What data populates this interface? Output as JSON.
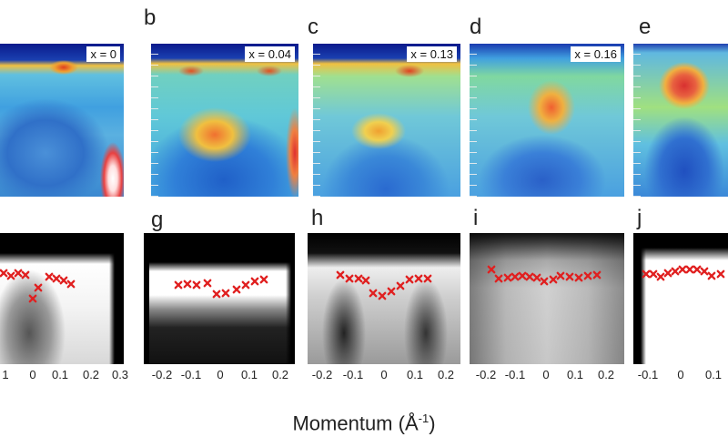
{
  "figure": {
    "xlabel": "Momentum (Å",
    "xlabel_sup": "-1",
    "xlabel_close": ")"
  },
  "top_panels": [
    {
      "letter": "",
      "doping": "x = 0"
    },
    {
      "letter": "b",
      "doping": "x = 0.04"
    },
    {
      "letter": "c",
      "doping": "x = 0.13"
    },
    {
      "letter": "d",
      "doping": "x = 0.16"
    },
    {
      "letter": "e",
      "doping": ""
    }
  ],
  "bottom_panels": [
    {
      "letter": "",
      "ticks": [
        "1",
        "0",
        "0.1",
        "0.2",
        "0.3"
      ]
    },
    {
      "letter": "g",
      "ticks": [
        "-0.2",
        "-0.1",
        "0",
        "0.1",
        "0.2"
      ]
    },
    {
      "letter": "h",
      "ticks": [
        "-0.2",
        "-0.1",
        "0",
        "0.1",
        "0.2"
      ]
    },
    {
      "letter": "i",
      "ticks": [
        "-0.2",
        "-0.1",
        "0",
        "0.1",
        "0.2"
      ]
    },
    {
      "letter": "j",
      "ticks": [
        "-0.1",
        "0",
        "0.1"
      ]
    }
  ],
  "colors": {
    "marker": "#e02020",
    "map_low": "#0a1a8c",
    "map_high": "#d83020"
  }
}
